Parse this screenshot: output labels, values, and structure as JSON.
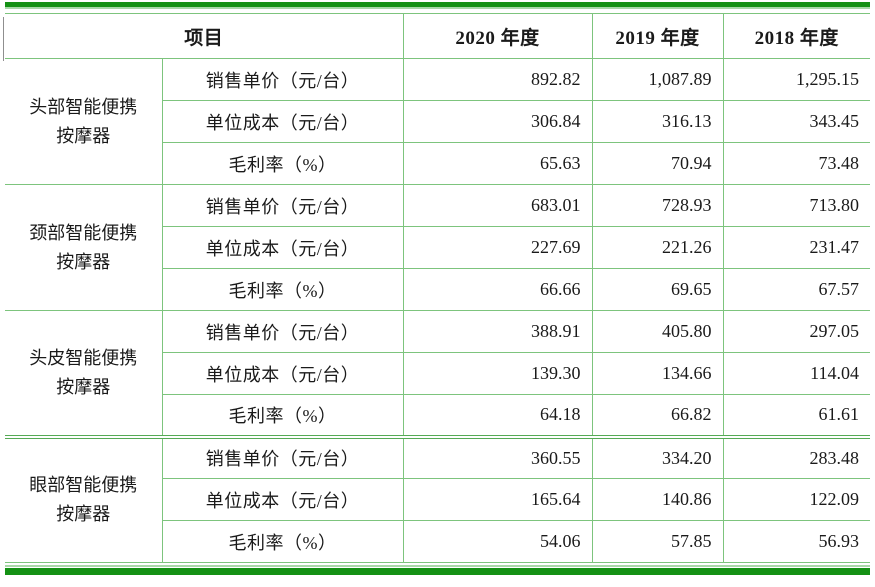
{
  "colors": {
    "bar_green": "#149114",
    "bar_edge": "#a8d8a8",
    "grid_green": "#7dc47d",
    "divider_green": "#55aa55",
    "text_color": "#1a1a1a"
  },
  "table": {
    "header": {
      "item_label": "项目",
      "year_cols": [
        "2020 年度",
        "2019 年度",
        "2018 年度"
      ]
    },
    "groups": [
      {
        "name": "头部智能便携按摩器",
        "rows": [
          {
            "metric": "销售单价（元/台）",
            "values": [
              "892.82",
              "1,087.89",
              "1,295.15"
            ]
          },
          {
            "metric": "单位成本（元/台）",
            "values": [
              "306.84",
              "316.13",
              "343.45"
            ]
          },
          {
            "metric": "毛利率（%）",
            "values": [
              "65.63",
              "70.94",
              "73.48"
            ]
          }
        ]
      },
      {
        "name": "颈部智能便携按摩器",
        "rows": [
          {
            "metric": "销售单价（元/台）",
            "values": [
              "683.01",
              "728.93",
              "713.80"
            ]
          },
          {
            "metric": "单位成本（元/台）",
            "values": [
              "227.69",
              "221.26",
              "231.47"
            ]
          },
          {
            "metric": "毛利率（%）",
            "values": [
              "66.66",
              "69.65",
              "67.57"
            ]
          }
        ]
      },
      {
        "name": "头皮智能便携按摩器",
        "rows": [
          {
            "metric": "销售单价（元/台）",
            "values": [
              "388.91",
              "405.80",
              "297.05"
            ]
          },
          {
            "metric": "单位成本（元/台）",
            "values": [
              "139.30",
              "134.66",
              "114.04"
            ]
          },
          {
            "metric": "毛利率（%）",
            "values": [
              "64.18",
              "66.82",
              "61.61"
            ]
          }
        ]
      },
      {
        "name": "眼部智能便携按摩器",
        "rows": [
          {
            "metric": "销售单价（元/台）",
            "values": [
              "360.55",
              "334.20",
              "283.48"
            ]
          },
          {
            "metric": "单位成本（元/台）",
            "values": [
              "165.64",
              "140.86",
              "122.09"
            ]
          },
          {
            "metric": "毛利率（%）",
            "values": [
              "54.06",
              "57.85",
              "56.93"
            ]
          }
        ]
      }
    ]
  }
}
